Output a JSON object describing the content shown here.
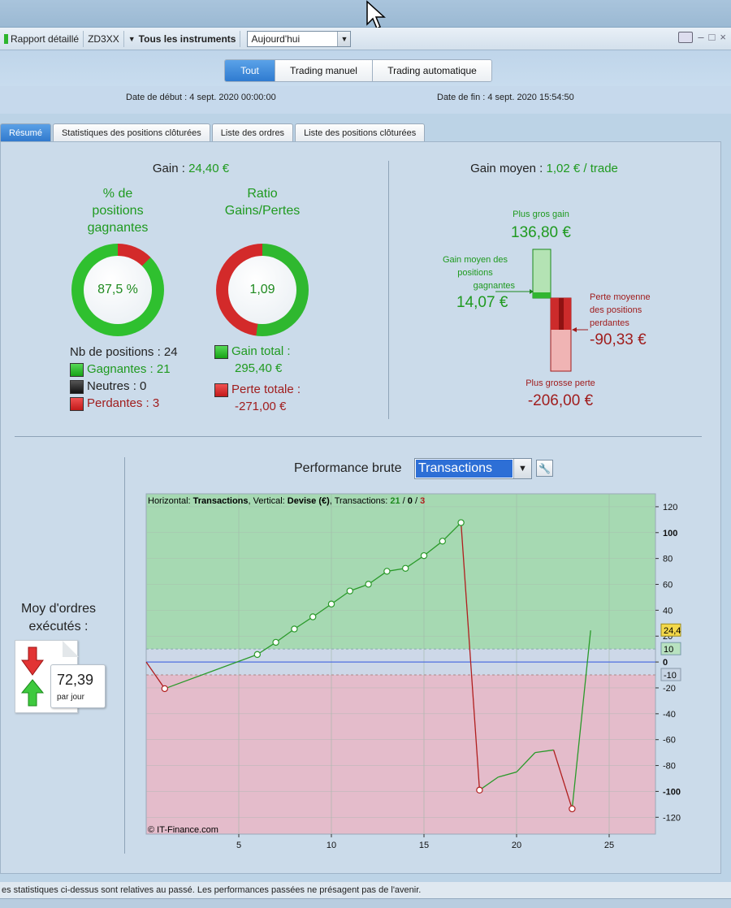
{
  "toolbar": {
    "report_label": "Rapport détaillé",
    "account": "ZD3XX",
    "instruments_label": "Tous les instruments",
    "period_value": "Aujourd'hui"
  },
  "modes": {
    "all": "Tout",
    "manual": "Trading manuel",
    "auto": "Trading automatique"
  },
  "dates": {
    "start": "Date de début :  4 sept. 2020 00:00:00",
    "end": "Date de fin :  4 sept. 2020 15:54:50"
  },
  "tabs": [
    "Résumé",
    "Statistiques des positions clôturées",
    "Liste des ordres",
    "Liste des positions clôturées"
  ],
  "summary": {
    "gain_label": "Gain : ",
    "gain_value": "24,40 €",
    "pct_title_1": "% de",
    "pct_title_2": "positions",
    "pct_title_3": "gagnantes",
    "pct_value": "87,5 %",
    "ratio_title_1": "Ratio",
    "ratio_title_2": "Gains/Pertes",
    "ratio_value": "1,09",
    "nb_positions": "Nb de positions : 24",
    "winning": "Gagnantes : 21",
    "neutral": "Neutres : 0",
    "losing": "Perdantes : 3",
    "gain_total_label": "Gain total :",
    "gain_total_value": "295,40 €",
    "loss_total_label": "Perte totale :",
    "loss_total_value": "-271,00 €",
    "win_fraction": 0.875,
    "gain_share": 0.5215
  },
  "avg": {
    "label": "Gain moyen : ",
    "value": "1,02 € / trade",
    "max_gain_label": "Plus gros gain",
    "max_gain_value": "136,80 €",
    "avg_win_label_1": "Gain moyen des",
    "avg_win_label_2": "positions",
    "avg_win_label_3": "gagnantes",
    "avg_win_value": "14,07 €",
    "avg_loss_label_1": "Perte moyenne",
    "avg_loss_label_2": "des positions",
    "avg_loss_label_3": "perdantes",
    "avg_loss_value": "-90,33 €",
    "max_loss_label": "Plus grosse perte",
    "max_loss_value": "-206,00 €"
  },
  "orders": {
    "label_1": "Moy d'ordres",
    "label_2": "exécutés :",
    "value": "72,39",
    "unit": "par jour"
  },
  "performance": {
    "label": "Performance brute",
    "dropdown_value": "Transactions"
  },
  "chart_data": {
    "type": "line",
    "header_prefix": "Horizontal: ",
    "header_h": "Transactions",
    "header_mid": ", Vertical: ",
    "header_v": "Devise (€)",
    "header_tx": ", Transactions: ",
    "header_w": "21",
    "header_sep1": " / ",
    "header_n": "0",
    "header_sep2": " / ",
    "header_l": "3",
    "credit": "© IT-Finance.com",
    "xlim": [
      0,
      27.5
    ],
    "ylim": [
      -133,
      130
    ],
    "x_ticks": [
      5,
      10,
      15,
      20,
      25
    ],
    "y_ticks": [
      120,
      100,
      80,
      60,
      40,
      20,
      0,
      -20,
      -40,
      -60,
      -80,
      -100,
      -120
    ],
    "y_bold_ticks": [
      100,
      0,
      -100
    ],
    "x": [
      0,
      1,
      6,
      7,
      8,
      9,
      10,
      11,
      12,
      13,
      14,
      15,
      16,
      17,
      18,
      19,
      20,
      21,
      22,
      23,
      24
    ],
    "y": [
      0,
      -20.6,
      5.8,
      15.2,
      25.5,
      34.9,
      44.8,
      54.9,
      60.1,
      70.1,
      72.4,
      82.2,
      93.4,
      107.7,
      -99,
      -89,
      -85,
      -70,
      -68,
      -113.5,
      24.4
    ],
    "markers_x": [
      1,
      6,
      7,
      8,
      9,
      10,
      11,
      12,
      13,
      14,
      15,
      16,
      17,
      18,
      23
    ],
    "upper_threshold": 10,
    "lower_threshold": -10,
    "last_value_label": "24,4",
    "upper_label": "10",
    "lower_label": "-10",
    "colors": {
      "gain": "#2a9a2a",
      "loss": "#b01e1e",
      "zero": "#4f6fe0",
      "green_zone": "#a6d9b2",
      "red_zone": "#e4bccb"
    }
  },
  "footer": {
    "disclaimer": "es statistiques ci-dessus sont relatives au passé. Les performances passées ne présagent pas de l'avenir."
  }
}
